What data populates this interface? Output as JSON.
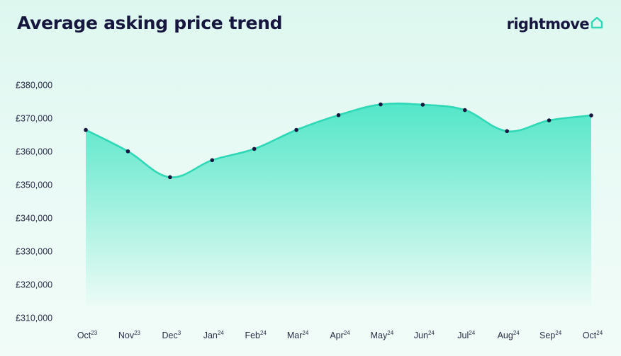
{
  "header": {
    "title": "Average asking price trend",
    "logo_text": "rightmove"
  },
  "colors": {
    "line": "#2fd8b6",
    "fill_top": "#52e6c8",
    "fill_bottom": "#ecfbf6",
    "point": "#16163f",
    "text": "#16163f"
  },
  "chart_data": {
    "type": "area",
    "title": "Average asking price trend",
    "xlabel": "",
    "ylabel": "",
    "categories": [
      {
        "label": "Oct",
        "sup": "23"
      },
      {
        "label": "Nov",
        "sup": "23"
      },
      {
        "label": "Dec",
        "sup": "3"
      },
      {
        "label": "Jan",
        "sup": "24"
      },
      {
        "label": "Feb",
        "sup": "24"
      },
      {
        "label": "Mar",
        "sup": "24"
      },
      {
        "label": "Apr",
        "sup": "24"
      },
      {
        "label": "May",
        "sup": "24"
      },
      {
        "label": "Jun",
        "sup": "24"
      },
      {
        "label": "Jul",
        "sup": "24"
      },
      {
        "label": "Aug",
        "sup": "24"
      },
      {
        "label": "Sep",
        "sup": "24"
      },
      {
        "label": "Oct",
        "sup": "24"
      }
    ],
    "values": [
      366466,
      360048,
      352264,
      357381,
      360765,
      366466,
      370908,
      374136,
      374052,
      372438,
      366101,
      369346,
      370834
    ],
    "ylim": [
      310000,
      380000
    ],
    "yticks": [
      {
        "value": 310000,
        "label": "£310,000"
      },
      {
        "value": 320000,
        "label": "£320,000"
      },
      {
        "value": 330000,
        "label": "£330,000"
      },
      {
        "value": 340000,
        "label": "£340,000"
      },
      {
        "value": 350000,
        "label": "£350,000"
      },
      {
        "value": 360000,
        "label": "£360,000"
      },
      {
        "value": 370000,
        "label": "£370,000"
      },
      {
        "value": 380000,
        "label": "£380,000"
      }
    ],
    "grid": false,
    "legend": "none"
  }
}
